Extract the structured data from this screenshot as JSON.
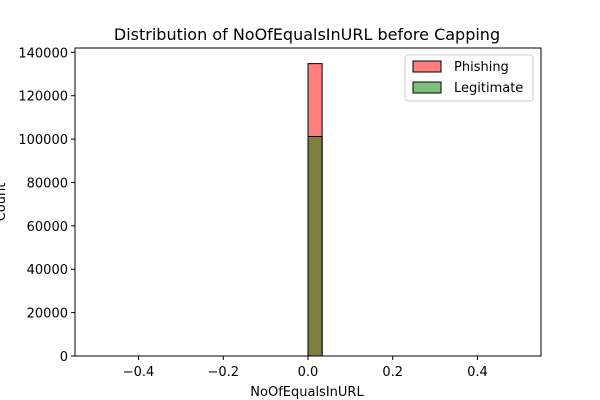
{
  "chart_data": {
    "type": "bar",
    "title": "Distribution of NoOfEqualsInURL before Capping",
    "xlabel": "NoOfEqualsInURL",
    "ylabel": "Count",
    "xlim": [
      -0.55,
      0.55
    ],
    "ylim": [
      0,
      142000
    ],
    "xticks": [
      -0.4,
      -0.2,
      0.0,
      0.2,
      0.4
    ],
    "xtick_labels": [
      "−0.4",
      "−0.2",
      "0.0",
      "0.2",
      "0.4"
    ],
    "yticks": [
      0,
      20000,
      40000,
      60000,
      80000,
      100000,
      120000,
      140000
    ],
    "ytick_labels": [
      "0",
      "20000",
      "40000",
      "60000",
      "80000",
      "100000",
      "120000",
      "140000"
    ],
    "bin_range": [
      -0.5,
      0.5
    ],
    "bin_count": 30,
    "grid": false,
    "legend_position": "top-right",
    "series": [
      {
        "name": "Phishing",
        "color": "#ff0000",
        "alpha": 0.5,
        "bins": [
          {
            "x0": 0.0,
            "x1": 0.0333,
            "value": 134800
          }
        ]
      },
      {
        "name": "Legitimate",
        "color": "#008000",
        "alpha": 0.5,
        "bins": [
          {
            "x0": 0.0,
            "x1": 0.0333,
            "value": 101200
          }
        ]
      }
    ]
  }
}
